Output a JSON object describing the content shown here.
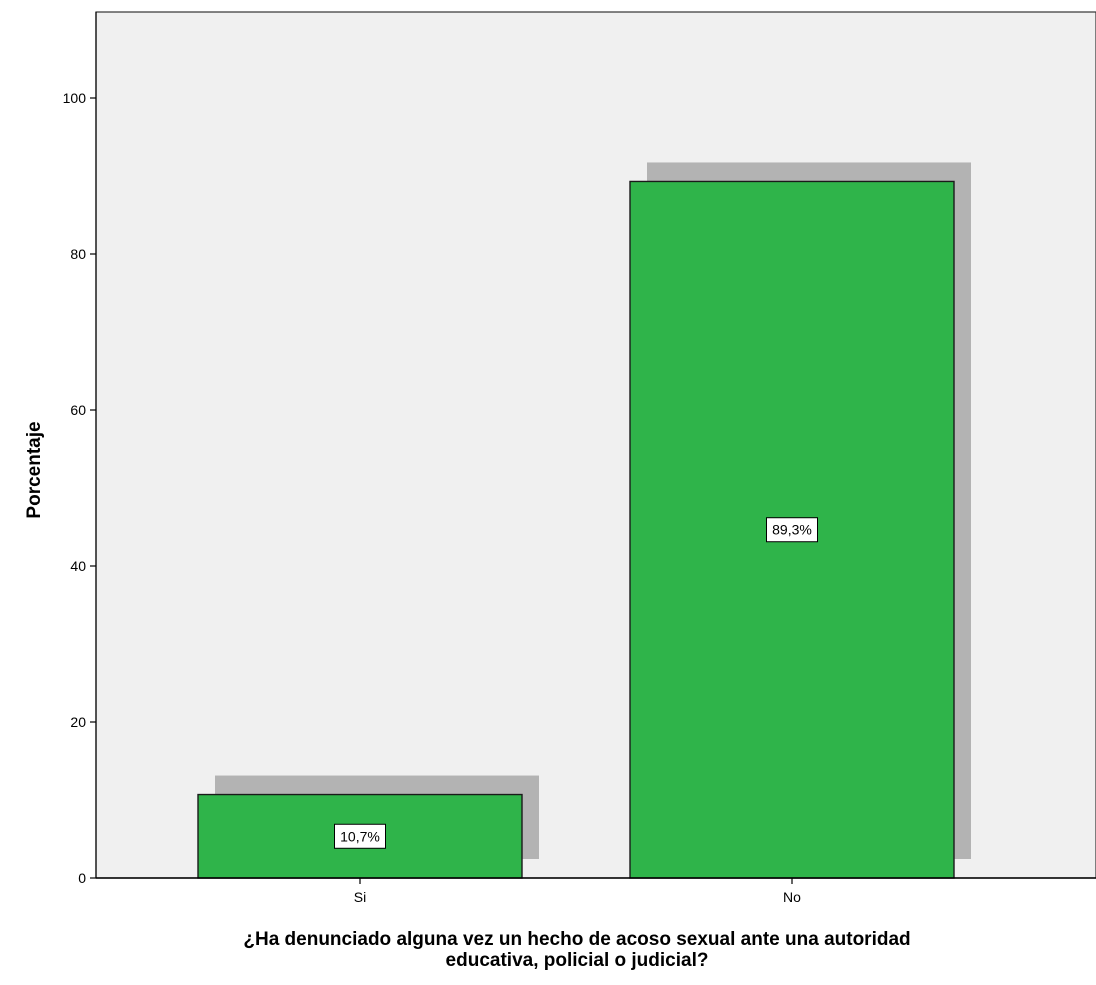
{
  "chart_data": {
    "type": "bar",
    "categories": [
      "Si",
      "No"
    ],
    "values": [
      10.7,
      89.3
    ],
    "data_labels": [
      "10,7%",
      "89,3%"
    ],
    "xlabel_lines": [
      "¿Ha denunciado alguna vez un hecho de acoso sexual ante una autoridad",
      "educativa, policial o judicial?"
    ],
    "ylabel": "Porcentaje",
    "ylim": [
      0,
      110
    ],
    "yticks": [
      0,
      20,
      40,
      60,
      80,
      100
    ],
    "grid": false,
    "legend": "none",
    "colors": {
      "bar_fill": "#2fb44a",
      "bar_stroke": "#1a1a1a",
      "shadow": "#b3b3b3",
      "plot_background": "#f0f0f0",
      "label_box": "#ffffff"
    }
  }
}
